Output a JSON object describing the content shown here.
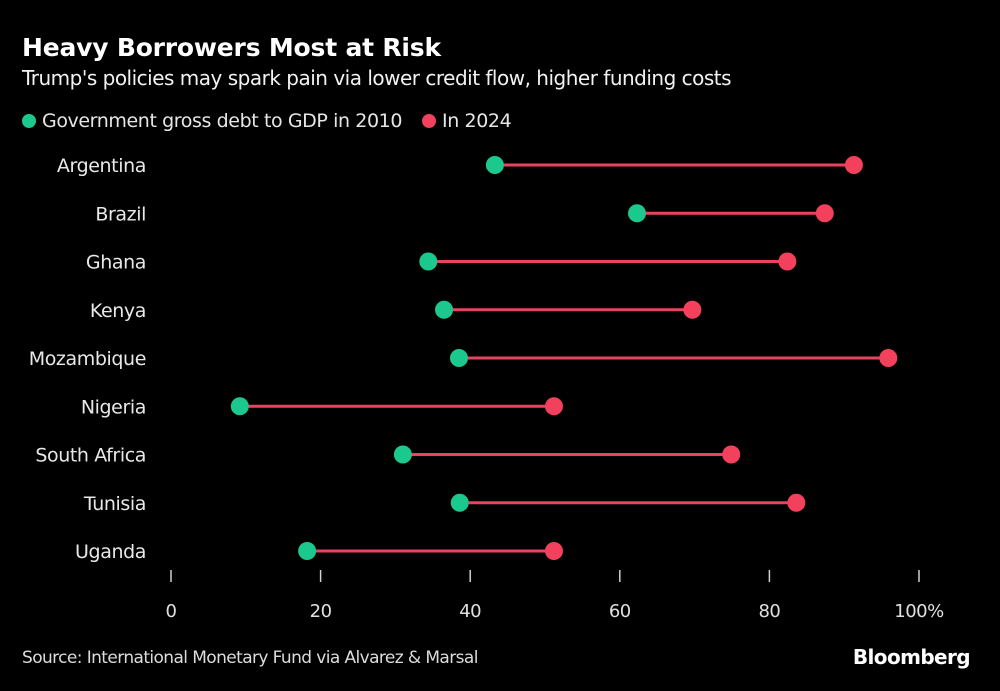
{
  "header": {
    "title": "Heavy Borrowers Most at Risk",
    "subtitle": "Trump's policies may spark pain via lower credit flow, higher funding costs"
  },
  "legend": [
    {
      "label": "Government gross debt to GDP in 2010",
      "color": "#1bc98e"
    },
    {
      "label": "In 2024",
      "color": "#f2405d"
    }
  ],
  "footer": {
    "source": "Source: International Monetary Fund via Alvarez & Marsal",
    "brand": "Bloomberg"
  },
  "chart_data": {
    "type": "dumbbell",
    "title": "Heavy Borrowers Most at Risk",
    "subtitle": "Trump's policies may spark pain via lower credit flow, higher funding costs",
    "xlabel": "",
    "ylabel": "",
    "xlim": [
      0,
      100
    ],
    "x_ticks": [
      0,
      20,
      40,
      60,
      80,
      100
    ],
    "x_tick_labels": [
      "0",
      "20",
      "40",
      "60",
      "80",
      "100%"
    ],
    "grid": false,
    "legend_position": "top-left",
    "colors": {
      "line": "#e8445f",
      "start": "#1bc98e",
      "end": "#f2405d"
    },
    "categories": [
      "Argentina",
      "Brazil",
      "Ghana",
      "Kenya",
      "Mozambique",
      "Nigeria",
      "South Africa",
      "Tunisia",
      "Uganda"
    ],
    "series": [
      {
        "name": "Government gross debt to GDP in 2010",
        "values": [
          43.3,
          62.3,
          34.4,
          36.5,
          38.5,
          9.2,
          31.0,
          38.6,
          18.2
        ]
      },
      {
        "name": "In 2024",
        "values": [
          91.3,
          87.4,
          82.4,
          69.7,
          95.9,
          51.2,
          74.9,
          83.6,
          51.2
        ]
      }
    ]
  }
}
